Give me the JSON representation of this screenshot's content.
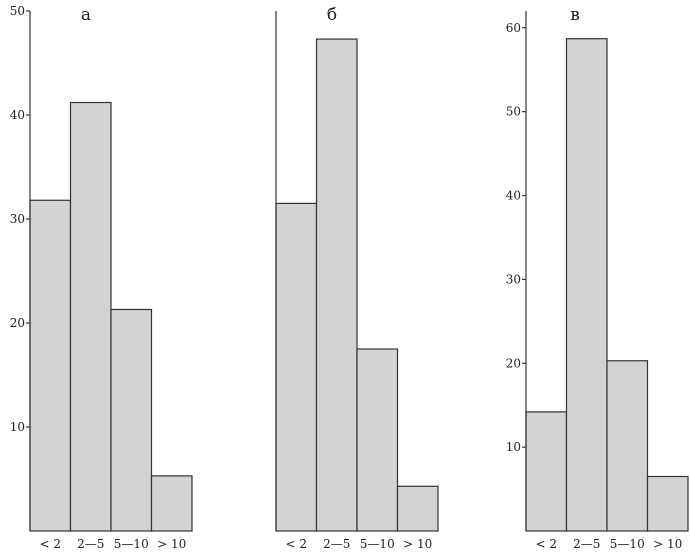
{
  "chart_data": [
    {
      "type": "bar",
      "panel_label": "а",
      "categories": [
        "< 2",
        "2—5",
        "5—10",
        "> 10"
      ],
      "values": [
        31.8,
        41.2,
        21.3,
        5.3
      ],
      "ylim": [
        0,
        50
      ],
      "yticks": [
        10,
        20,
        30,
        40,
        50
      ],
      "grid": false
    },
    {
      "type": "bar",
      "panel_label": "б",
      "categories": [
        "< 2",
        "2—5",
        "5—10",
        "> 10"
      ],
      "values": [
        31.5,
        47.3,
        17.5,
        4.3
      ],
      "ylim": [
        0,
        50
      ],
      "grid": false
    },
    {
      "type": "bar",
      "panel_label": "в",
      "categories": [
        "< 2",
        "2—5",
        "5—10",
        "> 10"
      ],
      "values": [
        14.2,
        58.7,
        20.3,
        6.5
      ],
      "ylim": [
        0,
        62
      ],
      "yticks": [
        10,
        20,
        30,
        40,
        50,
        60
      ],
      "grid": false
    }
  ]
}
